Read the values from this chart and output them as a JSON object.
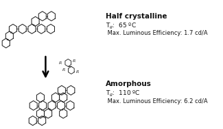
{
  "background_color": "#ffffff",
  "top_title": "Half crystalline",
  "top_tg": "T$_g$:  65 ºC",
  "top_efficiency": " Max. Luminous Efficiency: 1.7 cd/A",
  "bottom_title": "Amorphous",
  "bottom_tg": "T$_g$:  110 ºC",
  "bottom_efficiency": " Max. Luminous Efficiency: 6.2 cd/A",
  "text_fontsize": 6.5,
  "title_fontsize": 7.5
}
